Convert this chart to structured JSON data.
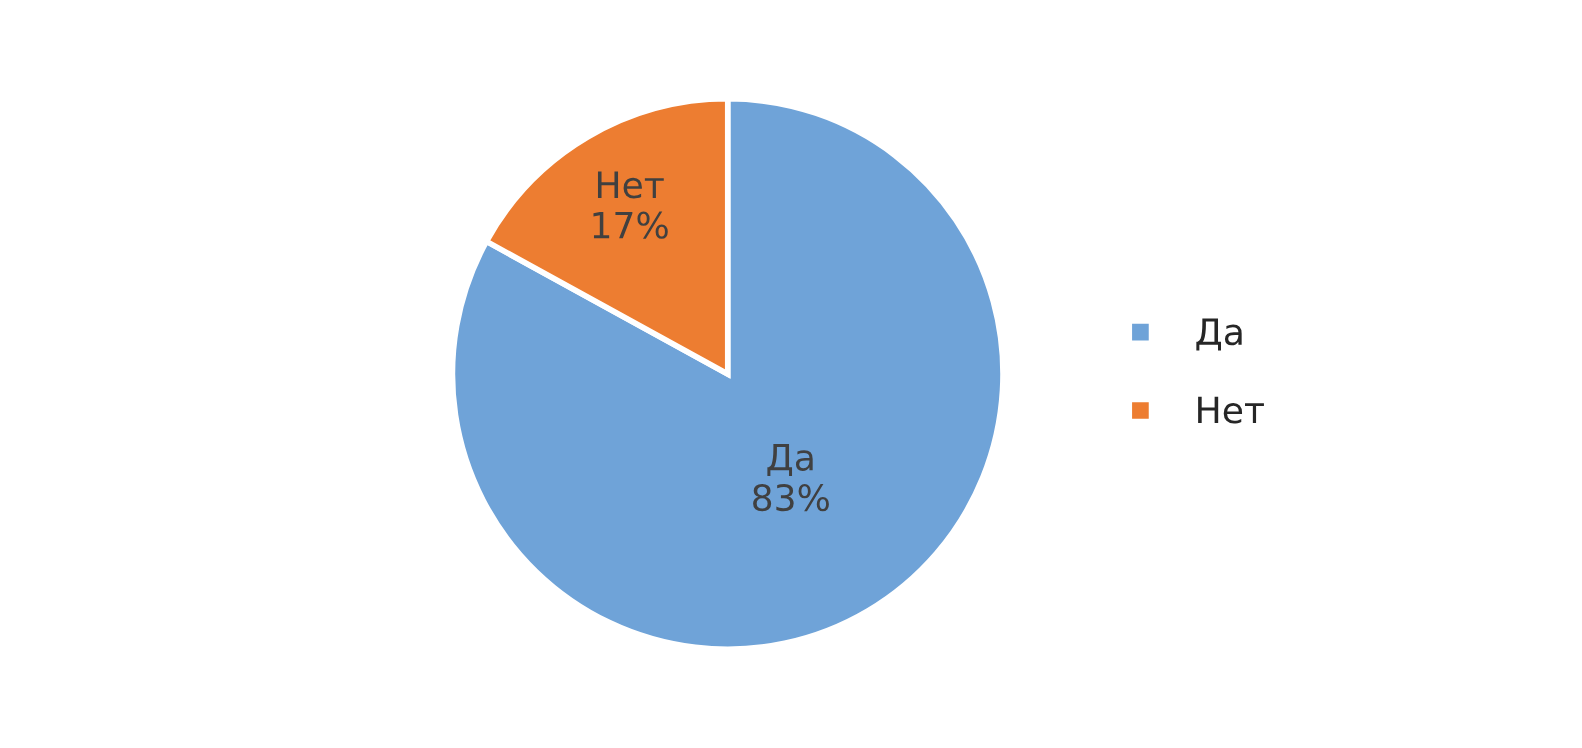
{
  "chart_data": {
    "type": "pie",
    "categories": [
      "Да",
      "Нет"
    ],
    "values": [
      83,
      17
    ],
    "value_labels": [
      "83%",
      "17%"
    ],
    "colors": [
      "#6fa3d8",
      "#ed7d31"
    ],
    "legend": "right"
  }
}
